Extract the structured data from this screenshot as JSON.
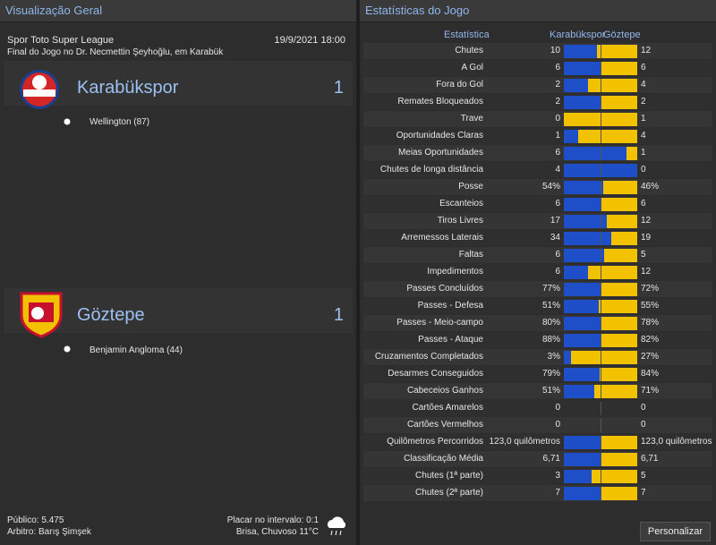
{
  "overview": {
    "title": "Visualização Geral",
    "competition": "Spor Toto Super League",
    "datetime": "19/9/2021 18:00",
    "subtitle": "Final do Jogo no Dr. Necmettin Şeyhoğlu, em Karabük",
    "teams": [
      {
        "name": "Karabükspor",
        "score": 1,
        "scorer": "Wellington (87)"
      },
      {
        "name": "Göztepe",
        "score": 1,
        "scorer": "Benjamin Angloma (44)"
      }
    ],
    "attendance": "Público: 5.475",
    "referee": "Arbitro: Barış Şimşek",
    "halftime": "Placar no intervalo: 0:1",
    "weather": "Brisa, Chuvoso 11°C"
  },
  "stats": {
    "title": "Estatísticas do Jogo",
    "header_stat": "Estatística",
    "header_home": "Karabükspor",
    "header_away": "Göztepe",
    "button": "Personalizar",
    "rows": [
      {
        "label": "Chutes",
        "home": 10,
        "away": 12
      },
      {
        "label": "A Gol",
        "home": 6,
        "away": 6
      },
      {
        "label": "Fora do Gol",
        "home": 2,
        "away": 4
      },
      {
        "label": "Remates Bloqueados",
        "home": 2,
        "away": 2
      },
      {
        "label": "Trave",
        "home": 0,
        "away": 1
      },
      {
        "label": "Oportunidades Claras",
        "home": 1,
        "away": 4
      },
      {
        "label": "Meias Oportunidades",
        "home": 6,
        "away": 1
      },
      {
        "label": "Chutes de longa distância",
        "home": 4,
        "away": 0
      },
      {
        "label": "Posse",
        "home": 54,
        "away": 46,
        "home_label": "54%",
        "away_label": "46%"
      },
      {
        "label": "Escanteios",
        "home": 6,
        "away": 6
      },
      {
        "label": "Tiros Livres",
        "home": 17,
        "away": 12
      },
      {
        "label": "Arremessos Laterais",
        "home": 34,
        "away": 19
      },
      {
        "label": "Faltas",
        "home": 6,
        "away": 5
      },
      {
        "label": "Impedimentos",
        "home": 6,
        "away": 12
      },
      {
        "label": "Passes Concluídos",
        "home": 77,
        "away": 72,
        "home_label": "77%",
        "away_label": "72%"
      },
      {
        "label": "Passes - Defesa",
        "home": 51,
        "away": 55,
        "home_label": "51%",
        "away_label": "55%"
      },
      {
        "label": "Passes - Meio-campo",
        "home": 80,
        "away": 78,
        "home_label": "80%",
        "away_label": "78%"
      },
      {
        "label": "Passes - Ataque",
        "home": 88,
        "away": 82,
        "home_label": "88%",
        "away_label": "82%"
      },
      {
        "label": "Cruzamentos Completados",
        "home": 3,
        "away": 27,
        "home_label": "3%",
        "away_label": "27%"
      },
      {
        "label": "Desarmes Conseguidos",
        "home": 79,
        "away": 84,
        "home_label": "79%",
        "away_label": "84%"
      },
      {
        "label": "Cabeceios Ganhos",
        "home": 51,
        "away": 71,
        "home_label": "51%",
        "away_label": "71%"
      },
      {
        "label": "Cartões Amarelos",
        "home": 0,
        "away": 0
      },
      {
        "label": "Cartões Vermelhos",
        "home": 0,
        "away": 0
      },
      {
        "label": "Quilômetros Percorridos",
        "home": 123.0,
        "away": 123.0,
        "home_label": "123,0 quilômetros",
        "away_label": "123,0 quilômetros"
      },
      {
        "label": "Classificação Média",
        "home": 6.71,
        "away": 6.71,
        "home_label": "6,71",
        "away_label": "6,71"
      },
      {
        "label": "Chutes (1ª parte)",
        "home": 3,
        "away": 5
      },
      {
        "label": "Chutes (2ª parte)",
        "home": 7,
        "away": 7
      }
    ]
  }
}
